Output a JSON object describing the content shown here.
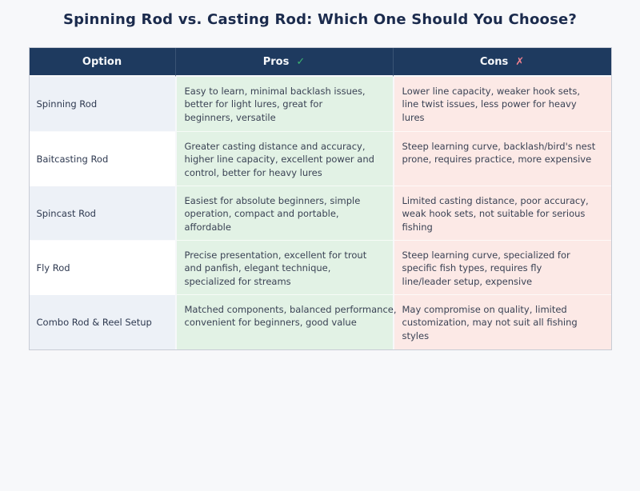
{
  "title": "Spinning Rod vs. Casting Rod: Which One Should You Choose?",
  "header": {
    "pros_icon": "✓",
    "cons_icon": "✗"
  },
  "colors": {
    "page_background": "#f7f8fa",
    "title_text": "#1b2b4d",
    "header_background": "#1e3a5f",
    "header_text": "#f5f7fa",
    "check_green": "#3cb371",
    "cross_pink": "#f0808e",
    "pros_cell_background": "#e2f2e5",
    "cons_cell_background": "#fce9e6",
    "option_cell_odd": "#edf1f7",
    "option_cell_even": "#ffffff"
  },
  "chart_data": {
    "type": "table",
    "title": "Spinning Rod vs. Casting Rod: Which One Should You Choose?",
    "columns": [
      "Option",
      "Pros",
      "Cons"
    ],
    "legend_position": "none",
    "grid": false,
    "rows": [
      {
        "option": "Spinning Rod",
        "pros": "Easy to learn, minimal backlash issues,\nbetter for light lures, great for\nbeginners, versatile",
        "cons": "Lower line capacity, weaker hook sets,\nline twist issues, less power for heavy\nlures"
      },
      {
        "option": "Baitcasting Rod",
        "pros": "Greater casting distance and accuracy,\nhigher line capacity, excellent power and\ncontrol, better for heavy lures",
        "cons": "Steep learning curve, backlash/bird's nest\nprone, requires practice, more expensive"
      },
      {
        "option": "Spincast Rod",
        "pros": "Easiest for absolute beginners, simple\noperation, compact and portable,\naffordable",
        "cons": "Limited casting distance, poor accuracy,\nweak hook sets, not suitable for serious\nfishing"
      },
      {
        "option": "Fly Rod",
        "pros": "Precise presentation, excellent for trout\nand panfish, elegant technique,\nspecialized for streams",
        "cons": "Steep learning curve, specialized for\nspecific fish types, requires fly\nline/leader setup, expensive"
      },
      {
        "option": "Combo Rod & Reel Setup",
        "pros": "Matched components, balanced performance,\nconvenient for beginners, good value",
        "cons": "May compromise on quality, limited\ncustomization, may not suit all fishing\nstyles"
      }
    ]
  }
}
